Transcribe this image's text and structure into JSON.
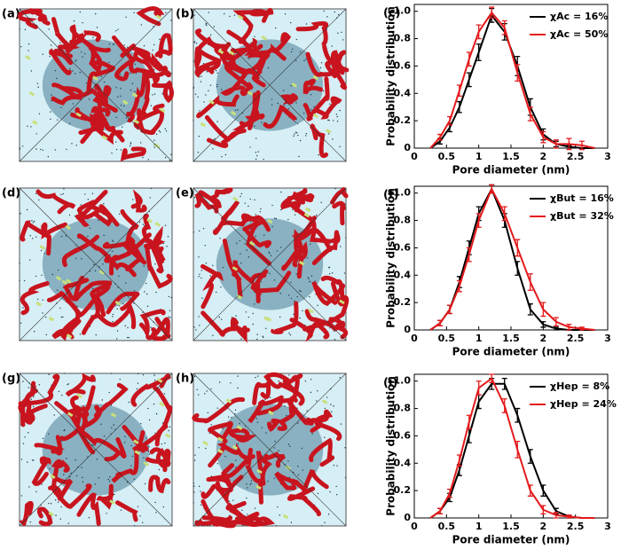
{
  "panels": [
    {
      "label": "(a)"
    },
    {
      "label": "(b)"
    },
    {
      "label": "(d)"
    },
    {
      "label": "(e)"
    },
    {
      "label": "(g)"
    },
    {
      "label": "(h)"
    }
  ],
  "chart_data": [
    {
      "type": "line",
      "panel_label": "(c)",
      "x_label": "Pore diameter (nm)",
      "y_label": "Probability distribution",
      "x": [
        0.25,
        0.4,
        0.55,
        0.7,
        0.85,
        1.0,
        1.2,
        1.4,
        1.6,
        1.8,
        2.0,
        2.2,
        2.4,
        2.6,
        2.8
      ],
      "series": [
        {
          "name": "χAc = 16%",
          "color": "#000000",
          "values": [
            0,
            0.05,
            0.15,
            0.3,
            0.5,
            0.7,
            0.97,
            0.85,
            0.6,
            0.3,
            0.1,
            0.03,
            0.01,
            0,
            0
          ],
          "errors": [
            0,
            0.02,
            0.03,
            0.04,
            0.05,
            0.06,
            0.05,
            0.06,
            0.07,
            0.06,
            0.04,
            0.02,
            0.01,
            0,
            0
          ]
        },
        {
          "name": "χAc = 50%",
          "color": "#e41a1c",
          "values": [
            0,
            0.08,
            0.2,
            0.42,
            0.65,
            0.85,
            0.99,
            0.88,
            0.55,
            0.25,
            0.08,
            0.03,
            0.03,
            0.02,
            0
          ],
          "errors": [
            0,
            0.02,
            0.03,
            0.04,
            0.05,
            0.05,
            0.04,
            0.05,
            0.06,
            0.05,
            0.04,
            0.03,
            0.04,
            0.03,
            0
          ]
        }
      ],
      "xlim": [
        0,
        3
      ],
      "xticks": [
        0,
        0.5,
        1,
        1.5,
        2,
        2.5,
        3
      ],
      "ylim": [
        0,
        1.05
      ],
      "yticks": [
        0,
        0.2,
        0.4,
        0.6,
        0.8,
        {
          "value": 1,
          "label": "1.0"
        }
      ]
    },
    {
      "type": "line",
      "panel_label": "(f)",
      "x_label": "Pore diameter (nm)",
      "y_label": "Probability distribution",
      "x": [
        0.25,
        0.4,
        0.55,
        0.7,
        0.85,
        1.0,
        1.2,
        1.4,
        1.6,
        1.8,
        2.0,
        2.2,
        2.4,
        2.6,
        2.8
      ],
      "series": [
        {
          "name": "χBut = 16%",
          "color": "#000000",
          "values": [
            0,
            0.05,
            0.15,
            0.35,
            0.6,
            0.85,
            1.03,
            0.8,
            0.45,
            0.15,
            0.04,
            0.01,
            0,
            0,
            0
          ],
          "errors": [
            0,
            0.02,
            0.03,
            0.04,
            0.05,
            0.05,
            0.03,
            0.05,
            0.05,
            0.04,
            0.02,
            0.01,
            0,
            0,
            0
          ]
        },
        {
          "name": "χBut = 32%",
          "color": "#e41a1c",
          "values": [
            0,
            0.05,
            0.15,
            0.32,
            0.55,
            0.8,
            1.03,
            0.85,
            0.6,
            0.35,
            0.15,
            0.06,
            0.02,
            0.01,
            0
          ],
          "errors": [
            0,
            0.02,
            0.03,
            0.04,
            0.05,
            0.05,
            0.03,
            0.05,
            0.06,
            0.06,
            0.05,
            0.03,
            0.02,
            0.01,
            0
          ]
        }
      ],
      "xlim": [
        0,
        3
      ],
      "xticks": [
        0,
        0.5,
        1,
        1.5,
        2,
        2.5,
        3
      ],
      "ylim": [
        0,
        1.05
      ],
      "yticks": [
        0,
        0.2,
        0.4,
        0.6,
        0.8,
        {
          "value": 1,
          "label": "1.0"
        }
      ]
    },
    {
      "type": "line",
      "panel_label": "(i)",
      "x_label": "Pore diameter (nm)",
      "y_label": "Probability distribution",
      "x": [
        0.25,
        0.4,
        0.55,
        0.7,
        0.85,
        1.0,
        1.2,
        1.4,
        1.6,
        1.8,
        2.0,
        2.2,
        2.4,
        2.6,
        2.8
      ],
      "series": [
        {
          "name": "χHep = 8%",
          "color": "#000000",
          "values": [
            0,
            0.05,
            0.15,
            0.35,
            0.6,
            0.85,
            0.98,
            0.98,
            0.75,
            0.45,
            0.2,
            0.05,
            0.01,
            0,
            0
          ],
          "errors": [
            0,
            0.02,
            0.03,
            0.04,
            0.05,
            0.05,
            0.04,
            0.04,
            0.05,
            0.05,
            0.04,
            0.02,
            0.01,
            0,
            0
          ]
        },
        {
          "name": "χHep = 24%",
          "color": "#e41a1c",
          "values": [
            0,
            0.05,
            0.18,
            0.42,
            0.7,
            0.95,
            1.02,
            0.82,
            0.5,
            0.2,
            0.06,
            0.02,
            0.01,
            0,
            0
          ],
          "errors": [
            0,
            0.02,
            0.03,
            0.04,
            0.05,
            0.05,
            0.03,
            0.05,
            0.06,
            0.04,
            0.03,
            0.02,
            0.01,
            0,
            0
          ]
        }
      ],
      "xlim": [
        0,
        3
      ],
      "xticks": [
        0,
        0.5,
        1,
        1.5,
        2,
        2.5,
        3
      ],
      "ylim": [
        0,
        1.05
      ],
      "yticks": [
        0,
        0.2,
        0.4,
        0.6,
        0.8,
        {
          "value": 1,
          "label": "1.0"
        }
      ]
    }
  ]
}
